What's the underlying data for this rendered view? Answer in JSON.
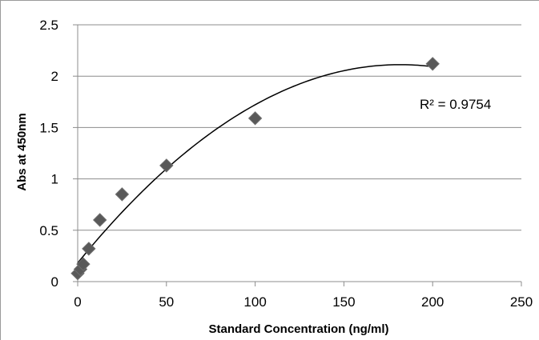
{
  "chart_data": {
    "type": "scatter",
    "title": "",
    "xlabel": "Standard Concentration (ng/ml)",
    "ylabel": "Abs at 450nm",
    "xlim": [
      0,
      250
    ],
    "ylim": [
      0,
      2.5
    ],
    "xticks": [
      "0",
      "50",
      "100",
      "150",
      "200",
      "250"
    ],
    "yticks": [
      "0",
      "0.5",
      "1",
      "1.5",
      "2",
      "2.5"
    ],
    "grid": "horizontal",
    "legend": "none",
    "marker": "diamond",
    "marker_color": "#595959",
    "x": [
      0,
      1.56,
      3.13,
      6.25,
      12.5,
      25,
      50,
      100,
      200
    ],
    "y": [
      0.08,
      0.12,
      0.17,
      0.32,
      0.6,
      0.85,
      1.13,
      1.59,
      2.12
    ],
    "trendline": {
      "type": "polynomial",
      "order": 2,
      "color": "#000000",
      "annotation": "R² = 0.9754"
    }
  }
}
